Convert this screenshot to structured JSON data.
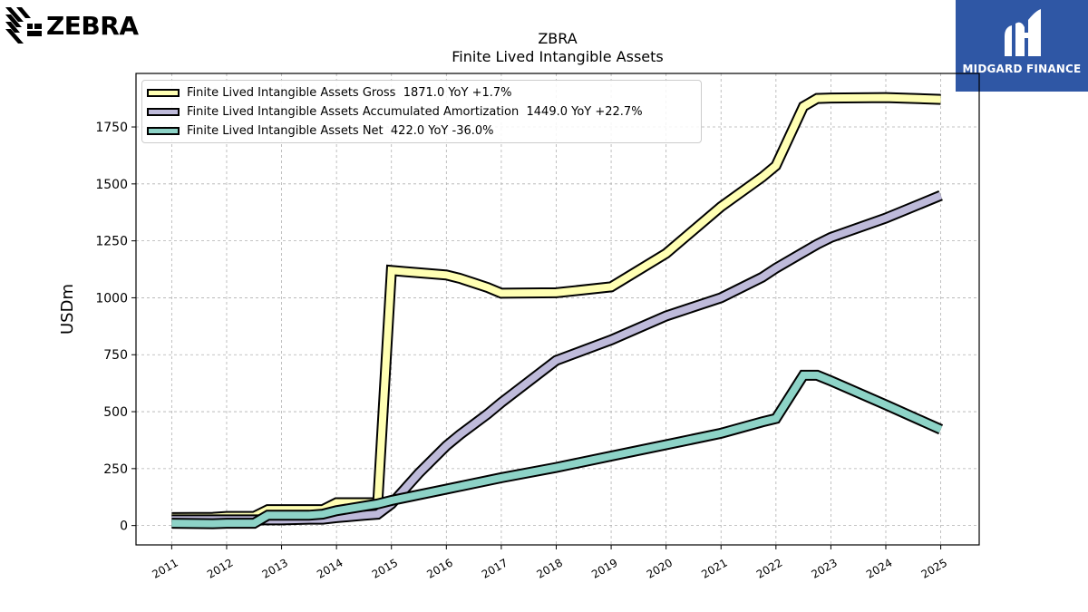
{
  "branding": {
    "company_logo_text": "ZEBRA",
    "brand_name": "MIDGARD FINANCE"
  },
  "chart_data": {
    "type": "line",
    "title": "ZBRA",
    "subtitle": "Finite Lived Intangible Assets",
    "ylabel": "USDm",
    "xlabel": "",
    "ylim": [
      -85,
      1985
    ],
    "xlim": [
      2010.35,
      2025.7
    ],
    "yticks": [
      0,
      250,
      500,
      750,
      1000,
      1250,
      1500,
      1750
    ],
    "xticks": [
      2011,
      2012,
      2013,
      2014,
      2015,
      2016,
      2017,
      2018,
      2019,
      2020,
      2021,
      2022,
      2023,
      2024,
      2025
    ],
    "grid": true,
    "legend_position": "top-left",
    "series": [
      {
        "name": "Finite Lived Intangible Assets Gross  1871.0 YoY +1.7%",
        "color": "#ffffb3",
        "x": [
          2011.0,
          2011.75,
          2012.0,
          2012.5,
          2012.75,
          2013.0,
          2013.5,
          2013.75,
          2014.0,
          2014.5,
          2014.75,
          2015.0,
          2015.25,
          2016.0,
          2016.25,
          2016.5,
          2016.75,
          2017.0,
          2018.0,
          2019.0,
          2020.0,
          2021.0,
          2021.75,
          2022.0,
          2022.5,
          2022.75,
          2023.0,
          2024.0,
          2025.0
        ],
        "values": [
          35,
          36,
          40,
          40,
          70,
          70,
          70,
          70,
          100,
          100,
          100,
          1120,
          1115,
          1100,
          1085,
          1065,
          1045,
          1020,
          1022,
          1048,
          1195,
          1400,
          1530,
          1580,
          1840,
          1875,
          1877,
          1879,
          1871
        ]
      },
      {
        "name": "Finite Lived Intangible Assets Accumulated Amortization  1449.0 YoY +22.7%",
        "color": "#bebada",
        "x": [
          2011.0,
          2011.75,
          2012.0,
          2012.5,
          2012.75,
          2013.0,
          2013.5,
          2013.75,
          2014.0,
          2014.5,
          2014.75,
          2015.0,
          2015.5,
          2016.0,
          2016.25,
          2016.75,
          2017.0,
          2018.0,
          2019.0,
          2020.0,
          2021.0,
          2021.75,
          2022.0,
          2022.5,
          2022.75,
          2023.0,
          2024.0,
          2025.0
        ],
        "values": [
          25,
          25,
          25,
          25,
          25,
          25,
          28,
          28,
          35,
          45,
          50,
          95,
          230,
          350,
          400,
          490,
          540,
          725,
          815,
          920,
          1000,
          1090,
          1130,
          1200,
          1235,
          1265,
          1350,
          1449
        ]
      },
      {
        "name": "Finite Lived Intangible Assets Net  422.0 YoY -36.0%",
        "color": "#8dd3c7",
        "x": [
          2011.0,
          2011.75,
          2012.0,
          2012.5,
          2012.75,
          2013.0,
          2013.5,
          2013.75,
          2014.0,
          2014.5,
          2014.75,
          2015.0,
          2016.0,
          2017.0,
          2018.0,
          2019.0,
          2020.0,
          2021.0,
          2021.75,
          2022.0,
          2022.5,
          2022.75,
          2023.0,
          2024.0,
          2025.0
        ],
        "values": [
          10,
          8,
          10,
          10,
          45,
          45,
          45,
          50,
          65,
          85,
          95,
          110,
          160,
          210,
          255,
          305,
          355,
          405,
          455,
          470,
          660,
          660,
          635,
          530,
          422
        ]
      }
    ]
  }
}
